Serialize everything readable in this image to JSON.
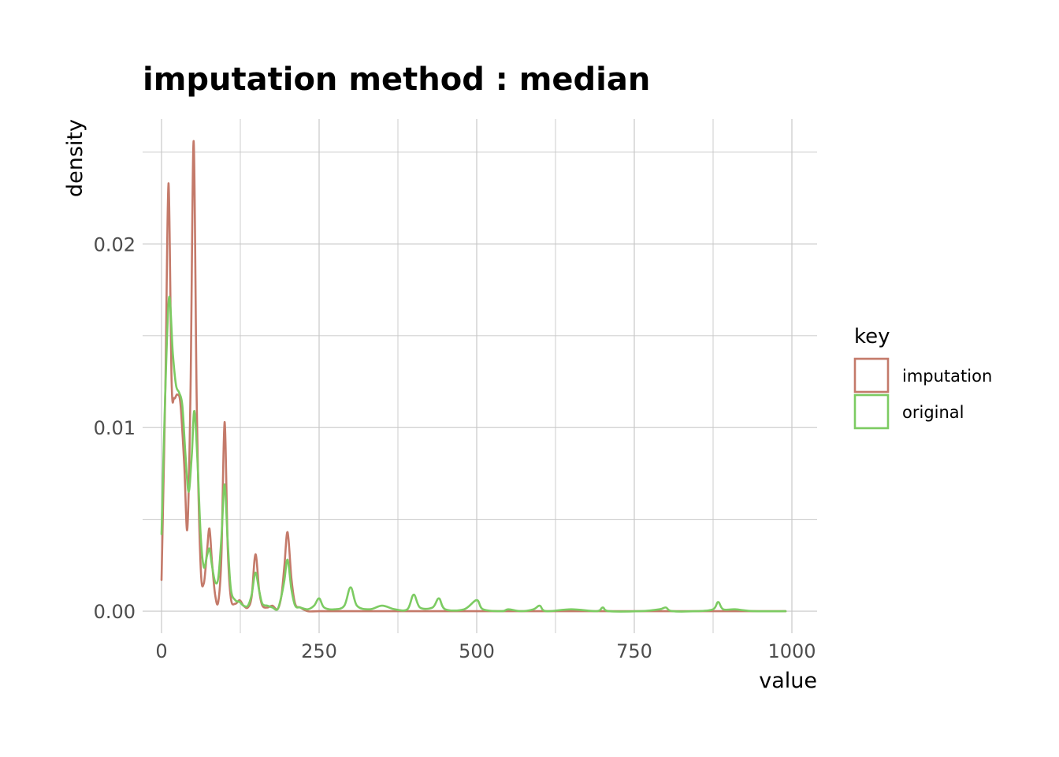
{
  "chart_data": {
    "type": "line",
    "title": "imputation method : median",
    "xlabel": "value",
    "ylabel": "density",
    "xlim": [
      -30,
      1040
    ],
    "ylim": [
      -0.0012,
      0.0268
    ],
    "x_ticks": [
      0,
      250,
      500,
      750,
      1000
    ],
    "x_tick_labels": [
      "0",
      "250",
      "500",
      "750",
      "1000"
    ],
    "y_ticks": [
      0.0,
      0.01,
      0.02
    ],
    "y_tick_labels": [
      "0.00",
      "0.01",
      "0.02"
    ],
    "grid": true,
    "legend_title": "key",
    "legend_position": "right",
    "series": [
      {
        "name": "imputation",
        "color": "#C47A6A",
        "x": [
          0,
          6,
          11,
          16,
          20,
          25,
          30,
          36,
          41,
          46,
          51,
          56,
          62,
          67,
          72,
          76,
          80,
          85,
          90,
          95,
          100,
          105,
          110,
          117,
          124,
          130,
          137,
          143,
          149,
          155,
          160,
          168,
          176,
          184,
          190,
          195,
          200,
          206,
          212,
          220,
          232,
          250,
          300,
          400,
          500,
          600,
          700,
          800,
          900,
          990
        ],
        "y": [
          0.0017,
          0.012,
          0.0233,
          0.0125,
          0.0116,
          0.0118,
          0.0113,
          0.008,
          0.0045,
          0.012,
          0.0256,
          0.011,
          0.0025,
          0.0015,
          0.0032,
          0.0045,
          0.0027,
          0.0009,
          0.0005,
          0.003,
          0.0103,
          0.0035,
          0.0007,
          0.0004,
          0.0006,
          0.0003,
          0.0002,
          0.0008,
          0.0031,
          0.0011,
          0.0003,
          0.0002,
          0.0003,
          0.0001,
          0.0008,
          0.0025,
          0.0043,
          0.0018,
          0.0004,
          0.0002,
          0.0,
          0.0,
          0.0,
          0.0,
          0.0,
          0.0,
          0.0,
          0.0,
          0.0,
          0.0
        ]
      },
      {
        "name": "original",
        "color": "#7CCB62",
        "x": [
          0,
          6,
          12,
          18,
          23,
          28,
          33,
          38,
          43,
          48,
          52,
          57,
          62,
          67,
          72,
          76,
          80,
          85,
          90,
          95,
          100,
          105,
          110,
          117,
          124,
          130,
          137,
          143,
          149,
          155,
          160,
          168,
          176,
          184,
          190,
          195,
          200,
          206,
          212,
          220,
          232,
          242,
          250,
          258,
          275,
          290,
          300,
          310,
          330,
          350,
          370,
          390,
          400,
          410,
          430,
          440,
          450,
          480,
          500,
          510,
          540,
          550,
          570,
          590,
          600,
          610,
          650,
          690,
          700,
          710,
          760,
          790,
          800,
          810,
          850,
          875,
          883,
          891,
          910,
          940,
          990
        ],
        "y": [
          0.0042,
          0.012,
          0.0171,
          0.014,
          0.0123,
          0.0119,
          0.0112,
          0.0085,
          0.0065,
          0.0085,
          0.0109,
          0.0082,
          0.0042,
          0.0024,
          0.003,
          0.0034,
          0.0025,
          0.0016,
          0.0018,
          0.004,
          0.0069,
          0.0038,
          0.0012,
          0.0006,
          0.0005,
          0.0003,
          0.0003,
          0.0009,
          0.0021,
          0.0011,
          0.0004,
          0.0003,
          0.0002,
          0.0001,
          0.0008,
          0.0017,
          0.0028,
          0.0012,
          0.0003,
          0.0002,
          0.0001,
          0.0003,
          0.0007,
          0.0002,
          0.0001,
          0.0003,
          0.0013,
          0.0003,
          0.0001,
          0.0003,
          0.0001,
          0.0001,
          0.0009,
          0.0002,
          0.0002,
          0.0007,
          0.0001,
          0.0001,
          0.0006,
          0.0001,
          0.0,
          0.0001,
          0.0,
          0.0001,
          0.0003,
          0.0,
          0.0001,
          0.0,
          0.0002,
          0.0,
          0.0,
          0.0001,
          0.0002,
          0.0,
          0.0,
          0.0001,
          0.0005,
          0.0001,
          0.0001,
          0.0,
          0.0
        ]
      }
    ]
  }
}
